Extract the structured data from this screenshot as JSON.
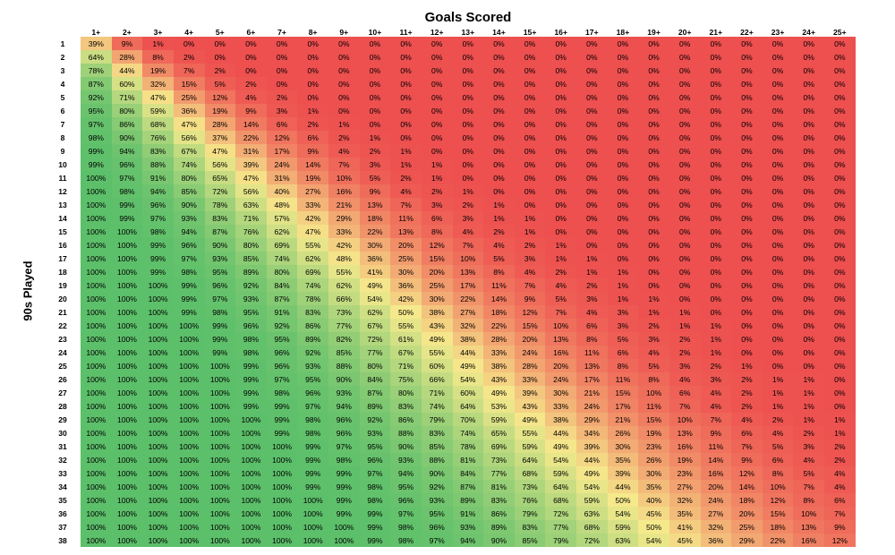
{
  "chart_data": {
    "type": "heatmap",
    "xlabel": "Goals Scored",
    "ylabel": "90s Played",
    "x": [
      "1+",
      "2+",
      "3+",
      "4+",
      "5+",
      "6+",
      "7+",
      "8+",
      "9+",
      "10+",
      "11+",
      "12+",
      "13+",
      "14+",
      "15+",
      "16+",
      "17+",
      "18+",
      "19+",
      "20+",
      "21+",
      "22+",
      "23+",
      "24+",
      "25+"
    ],
    "y": [
      "1",
      "2",
      "3",
      "4",
      "5",
      "6",
      "7",
      "8",
      "9",
      "10",
      "11",
      "12",
      "13",
      "14",
      "15",
      "16",
      "17",
      "18",
      "19",
      "20",
      "21",
      "22",
      "23",
      "24",
      "25",
      "26",
      "27",
      "28",
      "29",
      "30",
      "31",
      "32",
      "33",
      "34",
      "35",
      "36",
      "37",
      "38"
    ],
    "value_suffix": "%",
    "values": [
      [
        39,
        9,
        1,
        0,
        0,
        0,
        0,
        0,
        0,
        0,
        0,
        0,
        0,
        0,
        0,
        0,
        0,
        0,
        0,
        0,
        0,
        0,
        0,
        0,
        0
      ],
      [
        64,
        28,
        8,
        2,
        0,
        0,
        0,
        0,
        0,
        0,
        0,
        0,
        0,
        0,
        0,
        0,
        0,
        0,
        0,
        0,
        0,
        0,
        0,
        0,
        0
      ],
      [
        78,
        44,
        19,
        7,
        2,
        0,
        0,
        0,
        0,
        0,
        0,
        0,
        0,
        0,
        0,
        0,
        0,
        0,
        0,
        0,
        0,
        0,
        0,
        0,
        0
      ],
      [
        87,
        60,
        32,
        15,
        5,
        2,
        0,
        0,
        0,
        0,
        0,
        0,
        0,
        0,
        0,
        0,
        0,
        0,
        0,
        0,
        0,
        0,
        0,
        0,
        0
      ],
      [
        92,
        71,
        47,
        25,
        12,
        4,
        2,
        0,
        0,
        0,
        0,
        0,
        0,
        0,
        0,
        0,
        0,
        0,
        0,
        0,
        0,
        0,
        0,
        0,
        0
      ],
      [
        95,
        80,
        59,
        36,
        19,
        9,
        3,
        1,
        0,
        0,
        0,
        0,
        0,
        0,
        0,
        0,
        0,
        0,
        0,
        0,
        0,
        0,
        0,
        0,
        0
      ],
      [
        97,
        86,
        68,
        47,
        28,
        14,
        6,
        2,
        1,
        0,
        0,
        0,
        0,
        0,
        0,
        0,
        0,
        0,
        0,
        0,
        0,
        0,
        0,
        0,
        0
      ],
      [
        98,
        90,
        76,
        56,
        37,
        22,
        12,
        6,
        2,
        1,
        0,
        0,
        0,
        0,
        0,
        0,
        0,
        0,
        0,
        0,
        0,
        0,
        0,
        0,
        0
      ],
      [
        99,
        94,
        83,
        67,
        47,
        31,
        17,
        9,
        4,
        2,
        1,
        0,
        0,
        0,
        0,
        0,
        0,
        0,
        0,
        0,
        0,
        0,
        0,
        0,
        0
      ],
      [
        99,
        96,
        88,
        74,
        56,
        39,
        24,
        14,
        7,
        3,
        1,
        1,
        0,
        0,
        0,
        0,
        0,
        0,
        0,
        0,
        0,
        0,
        0,
        0,
        0
      ],
      [
        100,
        97,
        91,
        80,
        65,
        47,
        31,
        19,
        10,
        5,
        2,
        1,
        0,
        0,
        0,
        0,
        0,
        0,
        0,
        0,
        0,
        0,
        0,
        0,
        0
      ],
      [
        100,
        98,
        94,
        85,
        72,
        56,
        40,
        27,
        16,
        9,
        4,
        2,
        1,
        0,
        0,
        0,
        0,
        0,
        0,
        0,
        0,
        0,
        0,
        0,
        0
      ],
      [
        100,
        99,
        96,
        90,
        78,
        63,
        48,
        33,
        21,
        13,
        7,
        3,
        2,
        1,
        0,
        0,
        0,
        0,
        0,
        0,
        0,
        0,
        0,
        0,
        0
      ],
      [
        100,
        99,
        97,
        93,
        83,
        71,
        57,
        42,
        29,
        18,
        11,
        6,
        3,
        1,
        1,
        0,
        0,
        0,
        0,
        0,
        0,
        0,
        0,
        0,
        0
      ],
      [
        100,
        100,
        98,
        94,
        87,
        76,
        62,
        47,
        33,
        22,
        13,
        8,
        4,
        2,
        1,
        0,
        0,
        0,
        0,
        0,
        0,
        0,
        0,
        0,
        0
      ],
      [
        100,
        100,
        99,
        96,
        90,
        80,
        69,
        55,
        42,
        30,
        20,
        12,
        7,
        4,
        2,
        1,
        0,
        0,
        0,
        0,
        0,
        0,
        0,
        0,
        0
      ],
      [
        100,
        100,
        99,
        97,
        93,
        85,
        74,
        62,
        48,
        36,
        25,
        15,
        10,
        5,
        3,
        1,
        1,
        0,
        0,
        0,
        0,
        0,
        0,
        0,
        0
      ],
      [
        100,
        100,
        99,
        98,
        95,
        89,
        80,
        69,
        55,
        41,
        30,
        20,
        13,
        8,
        4,
        2,
        1,
        1,
        0,
        0,
        0,
        0,
        0,
        0,
        0
      ],
      [
        100,
        100,
        100,
        99,
        96,
        92,
        84,
        74,
        62,
        49,
        36,
        25,
        17,
        11,
        7,
        4,
        2,
        1,
        0,
        0,
        0,
        0,
        0,
        0,
        0
      ],
      [
        100,
        100,
        100,
        99,
        97,
        93,
        87,
        78,
        66,
        54,
        42,
        30,
        22,
        14,
        9,
        5,
        3,
        1,
        1,
        0,
        0,
        0,
        0,
        0,
        0
      ],
      [
        100,
        100,
        100,
        99,
        98,
        95,
        91,
        83,
        73,
        62,
        50,
        38,
        27,
        18,
        12,
        7,
        4,
        3,
        1,
        1,
        0,
        0,
        0,
        0,
        0
      ],
      [
        100,
        100,
        100,
        100,
        99,
        96,
        92,
        86,
        77,
        67,
        55,
        43,
        32,
        22,
        15,
        10,
        6,
        3,
        2,
        1,
        1,
        0,
        0,
        0,
        0
      ],
      [
        100,
        100,
        100,
        100,
        99,
        98,
        95,
        89,
        82,
        72,
        61,
        49,
        38,
        28,
        20,
        13,
        8,
        5,
        3,
        2,
        1,
        0,
        0,
        0,
        0
      ],
      [
        100,
        100,
        100,
        100,
        99,
        98,
        96,
        92,
        85,
        77,
        67,
        55,
        44,
        33,
        24,
        16,
        11,
        6,
        4,
        2,
        1,
        0,
        0,
        0,
        0
      ],
      [
        100,
        100,
        100,
        100,
        100,
        99,
        96,
        93,
        88,
        80,
        71,
        60,
        49,
        38,
        28,
        20,
        13,
        8,
        5,
        3,
        2,
        1,
        0,
        0,
        0
      ],
      [
        100,
        100,
        100,
        100,
        100,
        99,
        97,
        95,
        90,
        84,
        75,
        66,
        54,
        43,
        33,
        24,
        17,
        11,
        8,
        4,
        3,
        2,
        1,
        1,
        0
      ],
      [
        100,
        100,
        100,
        100,
        100,
        99,
        98,
        96,
        93,
        87,
        80,
        71,
        60,
        49,
        39,
        30,
        21,
        15,
        10,
        6,
        4,
        2,
        1,
        1,
        0
      ],
      [
        100,
        100,
        100,
        100,
        100,
        99,
        99,
        97,
        94,
        89,
        83,
        74,
        64,
        53,
        43,
        33,
        24,
        17,
        11,
        7,
        4,
        2,
        1,
        1,
        0
      ],
      [
        100,
        100,
        100,
        100,
        100,
        100,
        99,
        98,
        96,
        92,
        86,
        79,
        70,
        59,
        49,
        38,
        29,
        21,
        15,
        10,
        7,
        4,
        2,
        1,
        1
      ],
      [
        100,
        100,
        100,
        100,
        100,
        100,
        99,
        98,
        96,
        93,
        88,
        83,
        74,
        65,
        55,
        44,
        34,
        26,
        19,
        13,
        9,
        6,
        4,
        2,
        1
      ],
      [
        100,
        100,
        100,
        100,
        100,
        100,
        100,
        99,
        97,
        95,
        90,
        85,
        78,
        69,
        59,
        49,
        39,
        30,
        23,
        16,
        11,
        7,
        5,
        3,
        2
      ],
      [
        100,
        100,
        100,
        100,
        100,
        100,
        100,
        99,
        98,
        96,
        93,
        88,
        81,
        73,
        64,
        54,
        44,
        35,
        26,
        19,
        14,
        9,
        6,
        4,
        2
      ],
      [
        100,
        100,
        100,
        100,
        100,
        100,
        100,
        99,
        99,
        97,
        94,
        90,
        84,
        77,
        68,
        59,
        49,
        39,
        30,
        23,
        16,
        12,
        8,
        5,
        4
      ],
      [
        100,
        100,
        100,
        100,
        100,
        100,
        100,
        99,
        99,
        98,
        95,
        92,
        87,
        81,
        73,
        64,
        54,
        44,
        35,
        27,
        20,
        14,
        10,
        7,
        4
      ],
      [
        100,
        100,
        100,
        100,
        100,
        100,
        100,
        100,
        99,
        98,
        96,
        93,
        89,
        83,
        76,
        68,
        59,
        50,
        40,
        32,
        24,
        18,
        12,
        8,
        6
      ],
      [
        100,
        100,
        100,
        100,
        100,
        100,
        100,
        100,
        99,
        99,
        97,
        95,
        91,
        86,
        79,
        72,
        63,
        54,
        45,
        35,
        27,
        20,
        15,
        10,
        7
      ],
      [
        100,
        100,
        100,
        100,
        100,
        100,
        100,
        100,
        100,
        99,
        98,
        96,
        93,
        89,
        83,
        77,
        68,
        59,
        50,
        41,
        32,
        25,
        18,
        13,
        9
      ],
      [
        100,
        100,
        100,
        100,
        100,
        100,
        100,
        100,
        100,
        99,
        98,
        97,
        94,
        90,
        85,
        79,
        72,
        63,
        54,
        45,
        36,
        29,
        22,
        16,
        12
      ]
    ],
    "color_scale": {
      "low": "#ee4f4f",
      "mid": "#f5e98c",
      "high": "#5cbf6a"
    },
    "legend": false,
    "grid": false
  }
}
